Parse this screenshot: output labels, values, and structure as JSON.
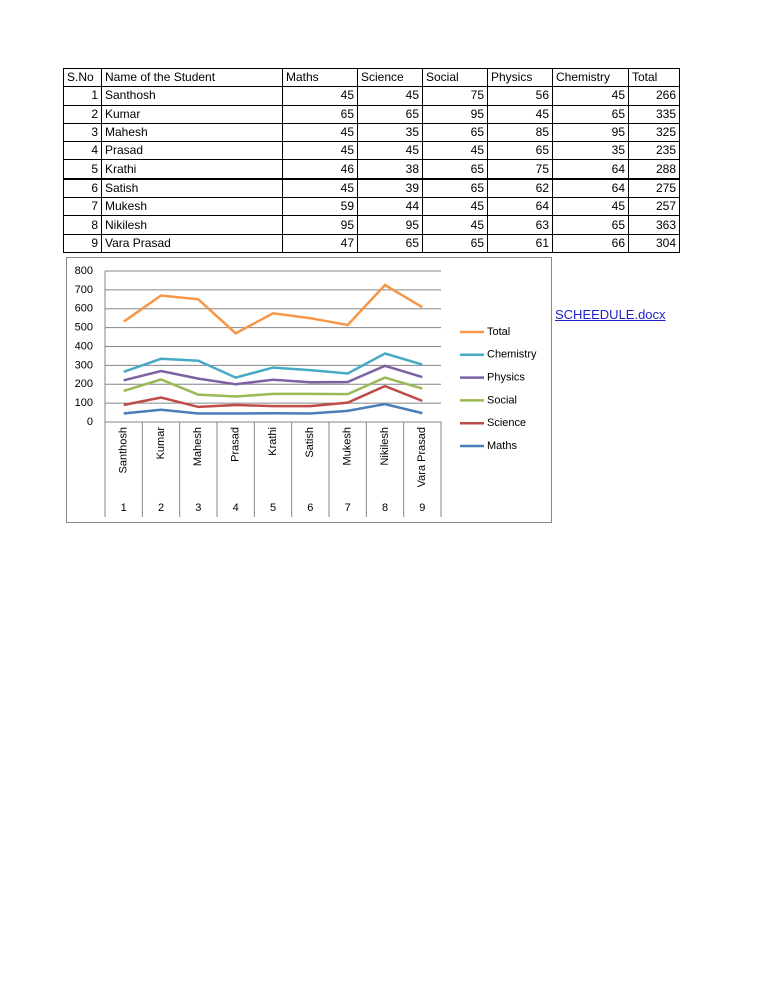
{
  "table": {
    "header": [
      "S.No",
      "Name of the Student",
      "Maths",
      "Science",
      "Social",
      "Physics",
      "Chemistry",
      "Total"
    ],
    "rows": [
      [
        1,
        "Santhosh",
        45,
        45,
        75,
        56,
        45,
        266
      ],
      [
        2,
        "Kumar",
        65,
        65,
        95,
        45,
        65,
        335
      ],
      [
        3,
        "Mahesh",
        45,
        35,
        65,
        85,
        95,
        325
      ],
      [
        4,
        "Prasad",
        45,
        45,
        45,
        65,
        35,
        235
      ],
      [
        5,
        "Krathi",
        46,
        38,
        65,
        75,
        64,
        288
      ],
      [
        6,
        "Satish",
        45,
        39,
        65,
        62,
        64,
        275
      ],
      [
        7,
        "Mukesh",
        59,
        44,
        45,
        64,
        45,
        257
      ],
      [
        8,
        "Nikilesh",
        95,
        95,
        45,
        63,
        65,
        363
      ],
      [
        9,
        "Vara Prasad",
        47,
        65,
        65,
        61,
        66,
        304
      ]
    ]
  },
  "chart_data": {
    "type": "line",
    "stacked": true,
    "categories": [
      "Santhosh",
      "Kumar",
      "Mahesh",
      "Prasad",
      "Krathi",
      "Satish",
      "Mukesh",
      "Nikilesh",
      "Vara Prasad"
    ],
    "category_numbers": [
      1,
      2,
      3,
      4,
      5,
      6,
      7,
      8,
      9
    ],
    "series": [
      {
        "name": "Maths",
        "color": "#4a7ebb",
        "values": [
          45,
          65,
          45,
          45,
          46,
          45,
          59,
          95,
          47
        ]
      },
      {
        "name": "Science",
        "color": "#be4b48",
        "values": [
          45,
          65,
          35,
          45,
          38,
          39,
          44,
          95,
          65
        ]
      },
      {
        "name": "Social",
        "color": "#98b954",
        "values": [
          75,
          95,
          65,
          45,
          65,
          65,
          45,
          45,
          65
        ]
      },
      {
        "name": "Physics",
        "color": "#7d60a0",
        "values": [
          56,
          45,
          85,
          65,
          75,
          62,
          64,
          63,
          61
        ]
      },
      {
        "name": "Chemistry",
        "color": "#46aac5",
        "values": [
          45,
          65,
          95,
          35,
          64,
          64,
          45,
          65,
          66
        ]
      },
      {
        "name": "Total",
        "color": "#f79646",
        "values": [
          266,
          335,
          325,
          235,
          288,
          275,
          257,
          363,
          304
        ]
      }
    ],
    "ylim": [
      0,
      800
    ],
    "yticks": [
      0,
      100,
      200,
      300,
      400,
      500,
      600,
      700,
      800
    ],
    "grid": true,
    "legend": "right"
  },
  "link": "SCHEEDULE.docx"
}
